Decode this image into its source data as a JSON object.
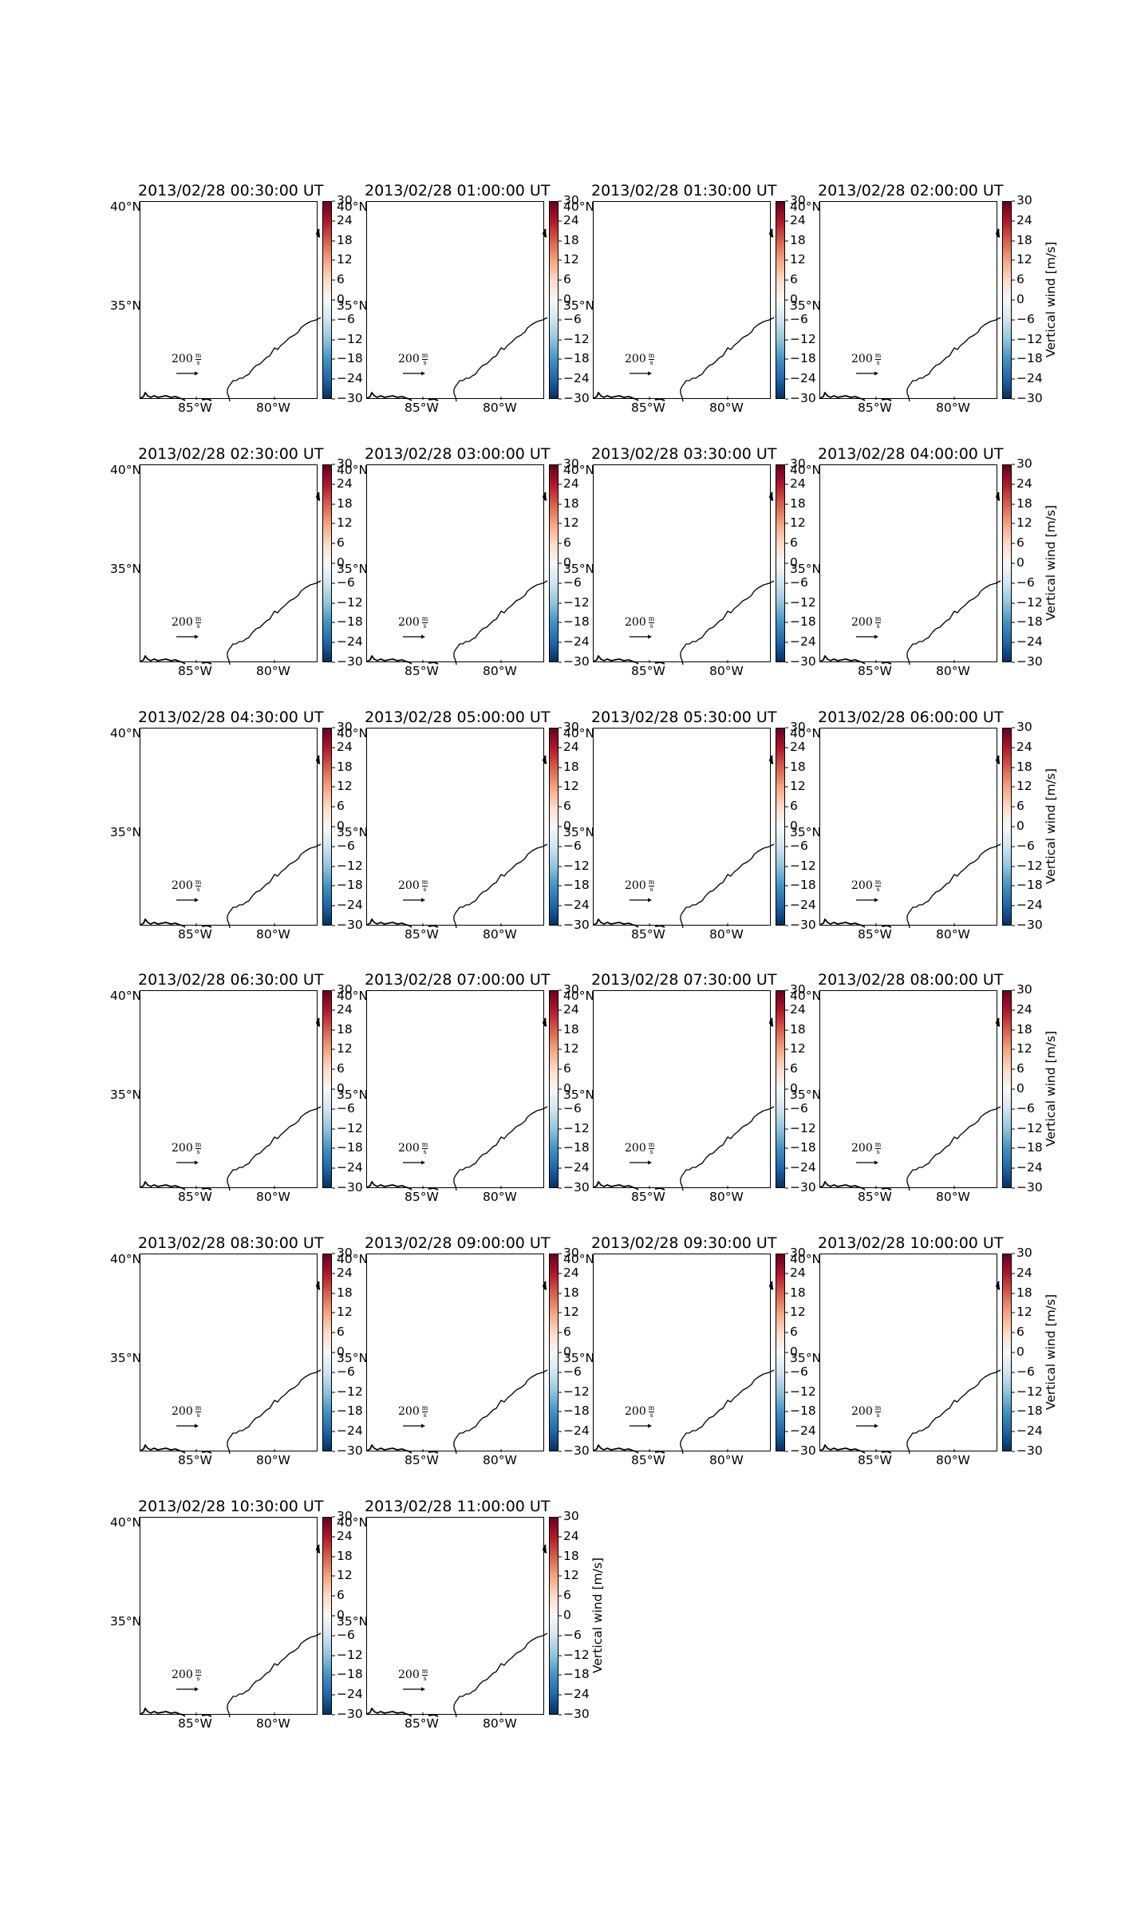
{
  "figure": {
    "colormap": [
      "#053061",
      "#2166ac",
      "#4393c3",
      "#92c5de",
      "#d1e5f0",
      "#f7f7f7",
      "#fddbc7",
      "#f4a582",
      "#d6604d",
      "#b2182b",
      "#67001f"
    ],
    "colorbar": {
      "ticks": [
        "30",
        "24",
        "18",
        "12",
        "6",
        "0",
        "−6",
        "−12",
        "−18",
        "−24",
        "−30"
      ],
      "label": "Vertical wind [m/s]"
    },
    "lat_labels": [
      "40°N",
      "35°N"
    ],
    "lon_labels": [
      "85°W",
      "80°W"
    ],
    "quiver_key": "200",
    "quiver_unit_num": "m",
    "quiver_unit_den": "s",
    "coastline_color": "#000000",
    "panels": [
      {
        "title": "2013/02/28 00:30:00 UT"
      },
      {
        "title": "2013/02/28 01:00:00 UT"
      },
      {
        "title": "2013/02/28 01:30:00 UT"
      },
      {
        "title": "2013/02/28 02:00:00 UT"
      },
      {
        "title": "2013/02/28 02:30:00 UT"
      },
      {
        "title": "2013/02/28 03:00:00 UT"
      },
      {
        "title": "2013/02/28 03:30:00 UT"
      },
      {
        "title": "2013/02/28 04:00:00 UT"
      },
      {
        "title": "2013/02/28 04:30:00 UT"
      },
      {
        "title": "2013/02/28 05:00:00 UT"
      },
      {
        "title": "2013/02/28 05:30:00 UT"
      },
      {
        "title": "2013/02/28 06:00:00 UT"
      },
      {
        "title": "2013/02/28 06:30:00 UT"
      },
      {
        "title": "2013/02/28 07:00:00 UT"
      },
      {
        "title": "2013/02/28 07:30:00 UT"
      },
      {
        "title": "2013/02/28 08:00:00 UT"
      },
      {
        "title": "2013/02/28 08:30:00 UT"
      },
      {
        "title": "2013/02/28 09:00:00 UT"
      },
      {
        "title": "2013/02/28 09:30:00 UT"
      },
      {
        "title": "2013/02/28 10:00:00 UT"
      },
      {
        "title": "2013/02/28 10:30:00 UT"
      },
      {
        "title": "2013/02/28 11:00:00 UT"
      }
    ]
  }
}
